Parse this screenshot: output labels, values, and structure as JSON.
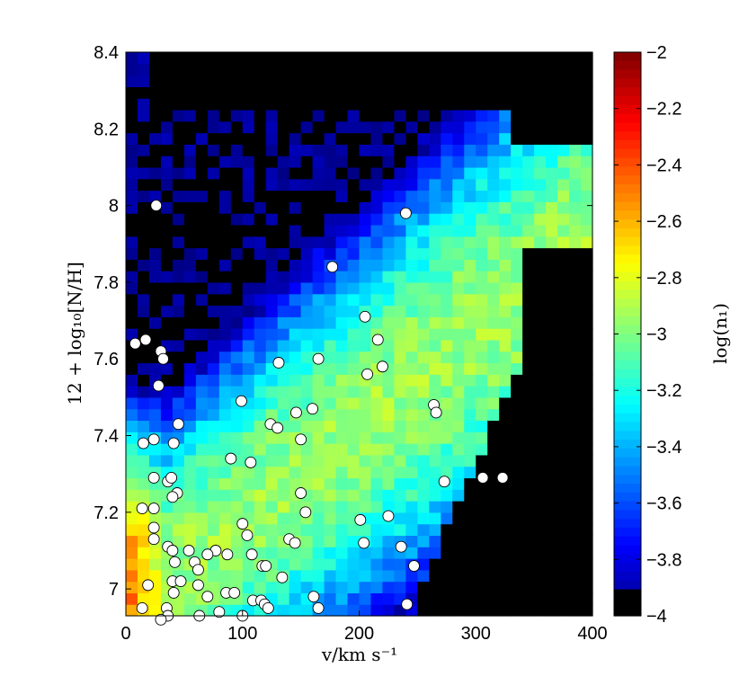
{
  "chart_data": {
    "type": "heatmap",
    "title": "",
    "xlabel": "v/km s⁻¹",
    "ylabel": "12 + log₁₀[N/H]",
    "colorbar_label": "log(n₁)",
    "xlim": [
      0,
      400
    ],
    "ylim": [
      6.93,
      8.4
    ],
    "clim": [
      -4,
      -2
    ],
    "x_ticks": [
      0,
      100,
      200,
      300,
      400
    ],
    "x_tick_labels": [
      "0",
      "100",
      "200",
      "300",
      "400"
    ],
    "y_ticks": [
      7.0,
      7.2,
      7.4,
      7.6,
      7.8,
      8.0,
      8.2,
      8.4
    ],
    "y_tick_labels": [
      "7",
      "7.2",
      "7.4",
      "7.6",
      "7.8",
      "8",
      "8.2",
      "8.4"
    ],
    "colorbar_ticks": [
      -2,
      -2.2,
      -2.4,
      -2.6,
      -2.8,
      -3,
      -3.2,
      -3.4,
      -3.6,
      -3.8,
      -4
    ],
    "colorbar_tick_labels": [
      "−2",
      "−2.2",
      "−2.4",
      "−2.6",
      "−2.8",
      "−3",
      "−3.2",
      "−3.4",
      "−3.6",
      "−3.8",
      "−4"
    ],
    "colormap": "jet",
    "grid": false,
    "grid_bins": {
      "nx": 40,
      "ny": 49
    },
    "points": [
      {
        "x": 26,
        "y": 8.0
      },
      {
        "x": 240,
        "y": 7.98
      },
      {
        "x": 177,
        "y": 7.84
      },
      {
        "x": 205,
        "y": 7.71
      },
      {
        "x": 216,
        "y": 7.65
      },
      {
        "x": 8,
        "y": 7.64
      },
      {
        "x": 17,
        "y": 7.65
      },
      {
        "x": 30,
        "y": 7.62
      },
      {
        "x": 32,
        "y": 7.6
      },
      {
        "x": 131,
        "y": 7.59
      },
      {
        "x": 165,
        "y": 7.6
      },
      {
        "x": 207,
        "y": 7.56
      },
      {
        "x": 220,
        "y": 7.58
      },
      {
        "x": 28,
        "y": 7.53
      },
      {
        "x": 99,
        "y": 7.49
      },
      {
        "x": 160,
        "y": 7.47
      },
      {
        "x": 146,
        "y": 7.46
      },
      {
        "x": 264,
        "y": 7.48
      },
      {
        "x": 266,
        "y": 7.46
      },
      {
        "x": 45,
        "y": 7.43
      },
      {
        "x": 124,
        "y": 7.43
      },
      {
        "x": 130,
        "y": 7.42
      },
      {
        "x": 15,
        "y": 7.38
      },
      {
        "x": 24,
        "y": 7.39
      },
      {
        "x": 41,
        "y": 7.38
      },
      {
        "x": 150,
        "y": 7.39
      },
      {
        "x": 90,
        "y": 7.34
      },
      {
        "x": 107,
        "y": 7.33
      },
      {
        "x": 24,
        "y": 7.29
      },
      {
        "x": 36,
        "y": 7.28
      },
      {
        "x": 39,
        "y": 7.29
      },
      {
        "x": 273,
        "y": 7.28
      },
      {
        "x": 306,
        "y": 7.29
      },
      {
        "x": 323,
        "y": 7.29
      },
      {
        "x": 44,
        "y": 7.25
      },
      {
        "x": 40,
        "y": 7.24
      },
      {
        "x": 150,
        "y": 7.25
      },
      {
        "x": 14,
        "y": 7.21
      },
      {
        "x": 24,
        "y": 7.21
      },
      {
        "x": 154,
        "y": 7.2
      },
      {
        "x": 225,
        "y": 7.19
      },
      {
        "x": 201,
        "y": 7.18
      },
      {
        "x": 100,
        "y": 7.17
      },
      {
        "x": 24,
        "y": 7.16
      },
      {
        "x": 104,
        "y": 7.14
      },
      {
        "x": 24,
        "y": 7.13
      },
      {
        "x": 140,
        "y": 7.13
      },
      {
        "x": 145,
        "y": 7.12
      },
      {
        "x": 204,
        "y": 7.12
      },
      {
        "x": 36,
        "y": 7.11
      },
      {
        "x": 40,
        "y": 7.1
      },
      {
        "x": 54,
        "y": 7.1
      },
      {
        "x": 77,
        "y": 7.1
      },
      {
        "x": 236,
        "y": 7.11
      },
      {
        "x": 70,
        "y": 7.09
      },
      {
        "x": 87,
        "y": 7.09
      },
      {
        "x": 108,
        "y": 7.09
      },
      {
        "x": 42,
        "y": 7.07
      },
      {
        "x": 59,
        "y": 7.07
      },
      {
        "x": 117,
        "y": 7.06
      },
      {
        "x": 247,
        "y": 7.06
      },
      {
        "x": 62,
        "y": 7.05
      },
      {
        "x": 120,
        "y": 7.06
      },
      {
        "x": 40,
        "y": 7.02
      },
      {
        "x": 47,
        "y": 7.02
      },
      {
        "x": 134,
        "y": 7.03
      },
      {
        "x": 19,
        "y": 7.01
      },
      {
        "x": 62,
        "y": 7.01
      },
      {
        "x": 41,
        "y": 6.99
      },
      {
        "x": 86,
        "y": 6.99
      },
      {
        "x": 93,
        "y": 6.99
      },
      {
        "x": 70,
        "y": 6.98
      },
      {
        "x": 161,
        "y": 6.98
      },
      {
        "x": 109,
        "y": 6.97
      },
      {
        "x": 116,
        "y": 6.97
      },
      {
        "x": 119,
        "y": 6.96
      },
      {
        "x": 122,
        "y": 6.95
      },
      {
        "x": 14,
        "y": 6.95
      },
      {
        "x": 35,
        "y": 6.95
      },
      {
        "x": 165,
        "y": 6.95
      },
      {
        "x": 241,
        "y": 6.96
      },
      {
        "x": 80,
        "y": 6.94
      },
      {
        "x": 36,
        "y": 6.93
      },
      {
        "x": 63,
        "y": 6.93
      },
      {
        "x": 100,
        "y": 6.93
      },
      {
        "x": 30,
        "y": 6.92
      }
    ]
  }
}
